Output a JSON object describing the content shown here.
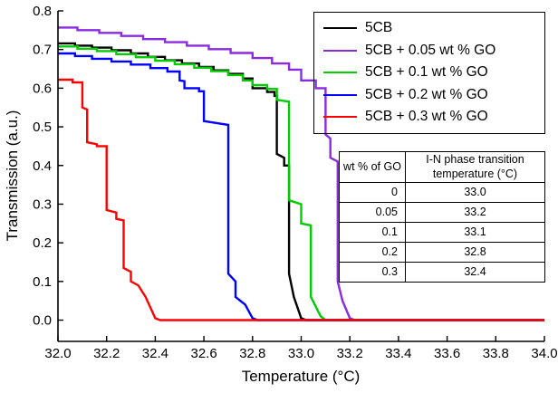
{
  "chart_data": {
    "type": "line",
    "title": "",
    "xlabel": "Temperature (°C)",
    "ylabel": "Transmission (a.u.)",
    "xlim": [
      32.0,
      34.0
    ],
    "ylim": [
      -0.055,
      0.8
    ],
    "x_ticks": [
      "32.0",
      "32.2",
      "32.4",
      "32.6",
      "32.8",
      "33.0",
      "33.2",
      "33.4",
      "33.6",
      "33.8",
      "34.0"
    ],
    "y_ticks": [
      "0.0",
      "0.1",
      "0.2",
      "0.3",
      "0.4",
      "0.5",
      "0.6",
      "0.7",
      "0.8"
    ],
    "grid": false,
    "legend_position": "top-right",
    "series": [
      {
        "name": "5CB",
        "color": "#000000",
        "points": [
          [
            32.0,
            0.716
          ],
          [
            32.07,
            0.716
          ],
          [
            32.07,
            0.71
          ],
          [
            32.14,
            0.71
          ],
          [
            32.14,
            0.705
          ],
          [
            32.22,
            0.705
          ],
          [
            32.22,
            0.698
          ],
          [
            32.3,
            0.698
          ],
          [
            32.3,
            0.69
          ],
          [
            32.37,
            0.69
          ],
          [
            32.37,
            0.681
          ],
          [
            32.44,
            0.681
          ],
          [
            32.44,
            0.672
          ],
          [
            32.51,
            0.672
          ],
          [
            32.51,
            0.664
          ],
          [
            32.58,
            0.664
          ],
          [
            32.58,
            0.655
          ],
          [
            32.64,
            0.655
          ],
          [
            32.64,
            0.646
          ],
          [
            32.7,
            0.646
          ],
          [
            32.7,
            0.637
          ],
          [
            32.76,
            0.637
          ],
          [
            32.76,
            0.625
          ],
          [
            32.8,
            0.625
          ],
          [
            32.8,
            0.6
          ],
          [
            32.86,
            0.6
          ],
          [
            32.86,
            0.59
          ],
          [
            32.89,
            0.59
          ],
          [
            32.89,
            0.58
          ],
          [
            32.9,
            0.58
          ],
          [
            32.9,
            0.43
          ],
          [
            32.93,
            0.42
          ],
          [
            32.93,
            0.4
          ],
          [
            32.95,
            0.4
          ],
          [
            32.95,
            0.12
          ],
          [
            32.97,
            0.06
          ],
          [
            33.0,
            0.005
          ],
          [
            33.02,
            0.0
          ],
          [
            34.0,
            0.0
          ]
        ]
      },
      {
        "name": "5CB + 0.05 wt % GO",
        "color": "#8A2BE2",
        "points": [
          [
            32.0,
            0.757
          ],
          [
            32.08,
            0.757
          ],
          [
            32.08,
            0.75
          ],
          [
            32.17,
            0.75
          ],
          [
            32.17,
            0.743
          ],
          [
            32.26,
            0.743
          ],
          [
            32.26,
            0.735
          ],
          [
            32.35,
            0.735
          ],
          [
            32.35,
            0.727
          ],
          [
            32.44,
            0.727
          ],
          [
            32.44,
            0.719
          ],
          [
            32.53,
            0.719
          ],
          [
            32.53,
            0.71
          ],
          [
            32.62,
            0.71
          ],
          [
            32.62,
            0.701
          ],
          [
            32.71,
            0.701
          ],
          [
            32.71,
            0.691
          ],
          [
            32.8,
            0.691
          ],
          [
            32.8,
            0.678
          ],
          [
            32.88,
            0.678
          ],
          [
            32.88,
            0.664
          ],
          [
            32.95,
            0.664
          ],
          [
            32.95,
            0.648
          ],
          [
            33.0,
            0.648
          ],
          [
            33.0,
            0.62
          ],
          [
            33.06,
            0.62
          ],
          [
            33.06,
            0.6
          ],
          [
            33.1,
            0.6
          ],
          [
            33.1,
            0.48
          ],
          [
            33.12,
            0.47
          ],
          [
            33.12,
            0.42
          ],
          [
            33.15,
            0.41
          ],
          [
            33.15,
            0.1
          ],
          [
            33.17,
            0.05
          ],
          [
            33.2,
            0.005
          ],
          [
            33.22,
            0.0
          ],
          [
            34.0,
            0.0
          ]
        ]
      },
      {
        "name": "5CB + 0.1 wt % GO",
        "color": "#00CC00",
        "points": [
          [
            32.0,
            0.708
          ],
          [
            32.08,
            0.708
          ],
          [
            32.08,
            0.702
          ],
          [
            32.16,
            0.702
          ],
          [
            32.16,
            0.696
          ],
          [
            32.24,
            0.696
          ],
          [
            32.24,
            0.688
          ],
          [
            32.32,
            0.688
          ],
          [
            32.32,
            0.68
          ],
          [
            32.4,
            0.68
          ],
          [
            32.4,
            0.671
          ],
          [
            32.48,
            0.671
          ],
          [
            32.48,
            0.662
          ],
          [
            32.56,
            0.662
          ],
          [
            32.56,
            0.653
          ],
          [
            32.63,
            0.653
          ],
          [
            32.63,
            0.644
          ],
          [
            32.7,
            0.644
          ],
          [
            32.7,
            0.634
          ],
          [
            32.76,
            0.634
          ],
          [
            32.76,
            0.62
          ],
          [
            32.8,
            0.62
          ],
          [
            32.8,
            0.608
          ],
          [
            32.86,
            0.608
          ],
          [
            32.86,
            0.598
          ],
          [
            32.9,
            0.598
          ],
          [
            32.9,
            0.57
          ],
          [
            32.95,
            0.565
          ],
          [
            32.95,
            0.31
          ],
          [
            33.0,
            0.3
          ],
          [
            33.0,
            0.25
          ],
          [
            33.04,
            0.245
          ],
          [
            33.04,
            0.06
          ],
          [
            33.08,
            0.01
          ],
          [
            33.1,
            0.0
          ],
          [
            34.0,
            0.0
          ]
        ]
      },
      {
        "name": "5CB + 0.2 wt % GO",
        "color": "#0000FF",
        "points": [
          [
            32.0,
            0.69
          ],
          [
            32.07,
            0.69
          ],
          [
            32.07,
            0.683
          ],
          [
            32.14,
            0.683
          ],
          [
            32.14,
            0.676
          ],
          [
            32.22,
            0.676
          ],
          [
            32.22,
            0.669
          ],
          [
            32.3,
            0.669
          ],
          [
            32.3,
            0.661
          ],
          [
            32.38,
            0.661
          ],
          [
            32.38,
            0.652
          ],
          [
            32.45,
            0.652
          ],
          [
            32.45,
            0.643
          ],
          [
            32.5,
            0.643
          ],
          [
            32.5,
            0.62
          ],
          [
            32.52,
            0.618
          ],
          [
            32.52,
            0.6
          ],
          [
            32.58,
            0.6
          ],
          [
            32.58,
            0.592
          ],
          [
            32.6,
            0.592
          ],
          [
            32.6,
            0.515
          ],
          [
            32.65,
            0.51
          ],
          [
            32.7,
            0.505
          ],
          [
            32.7,
            0.12
          ],
          [
            32.73,
            0.1
          ],
          [
            32.73,
            0.06
          ],
          [
            32.77,
            0.04
          ],
          [
            32.8,
            0.005
          ],
          [
            32.82,
            0.0
          ],
          [
            34.0,
            0.0
          ]
        ]
      },
      {
        "name": "5CB + 0.3 wt % GO",
        "color": "#FF0000",
        "points": [
          [
            32.0,
            0.622
          ],
          [
            32.06,
            0.622
          ],
          [
            32.06,
            0.615
          ],
          [
            32.1,
            0.615
          ],
          [
            32.1,
            0.55
          ],
          [
            32.12,
            0.545
          ],
          [
            32.12,
            0.46
          ],
          [
            32.16,
            0.455
          ],
          [
            32.16,
            0.45
          ],
          [
            32.2,
            0.45
          ],
          [
            32.2,
            0.285
          ],
          [
            32.24,
            0.278
          ],
          [
            32.24,
            0.262
          ],
          [
            32.27,
            0.258
          ],
          [
            32.27,
            0.135
          ],
          [
            32.3,
            0.125
          ],
          [
            32.3,
            0.1
          ],
          [
            32.33,
            0.09
          ],
          [
            32.36,
            0.06
          ],
          [
            32.4,
            0.005
          ],
          [
            32.42,
            0.0
          ],
          [
            34.0,
            0.0
          ]
        ]
      }
    ]
  },
  "inset_table": {
    "headers": [
      "wt % of GO",
      "I-N phase transition temperature (°C)"
    ],
    "rows": [
      [
        "0",
        "33.0"
      ],
      [
        "0.05",
        "33.2"
      ],
      [
        "0.1",
        "33.1"
      ],
      [
        "0.2",
        "32.8"
      ],
      [
        "0.3",
        "32.4"
      ]
    ]
  }
}
